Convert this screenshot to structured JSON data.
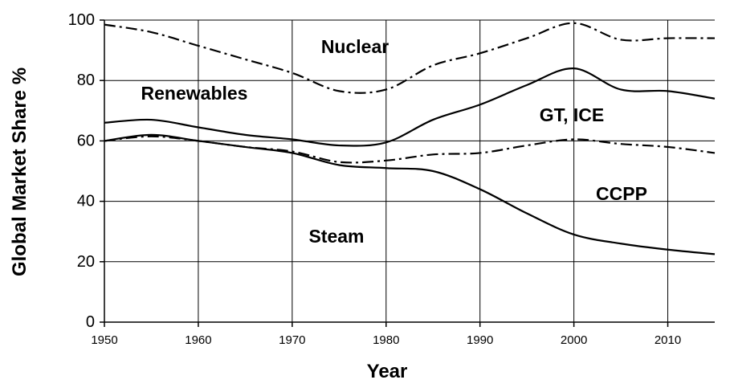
{
  "chart_data": {
    "type": "area",
    "xlabel": "Year",
    "ylabel": "Global Market Share %",
    "xlim": [
      1950,
      2015
    ],
    "ylim": [
      0,
      100
    ],
    "xticks": [
      1950,
      1960,
      1970,
      1980,
      1990,
      2000,
      2010
    ],
    "yticks": [
      0,
      20,
      40,
      60,
      80,
      100
    ],
    "grid": "horizontal and vertical",
    "boundaries": [
      {
        "style": "solid",
        "x": [
          1950,
          1955,
          1960,
          1965,
          1970,
          1975,
          1980,
          1985,
          1990,
          1995,
          2000,
          2005,
          2010,
          2015
        ],
        "y": [
          60,
          62,
          60,
          58,
          56,
          52,
          51,
          50,
          44,
          36,
          29,
          26,
          24,
          22.5
        ]
      },
      {
        "style": "dash-dot",
        "x": [
          1950,
          1955,
          1960,
          1965,
          1970,
          1975,
          1980,
          1985,
          1990,
          1995,
          2000,
          2005,
          2010,
          2015
        ],
        "y": [
          60,
          61.5,
          60,
          58,
          56.5,
          53,
          53.5,
          55.5,
          56,
          58.5,
          60.5,
          59,
          58,
          56
        ]
      },
      {
        "style": "solid",
        "x": [
          1950,
          1955,
          1960,
          1965,
          1970,
          1975,
          1980,
          1985,
          1990,
          1995,
          2000,
          2005,
          2010,
          2015
        ],
        "y": [
          66,
          67,
          64.5,
          62,
          60.5,
          58.5,
          59.5,
          67,
          72,
          78.5,
          84,
          77,
          76.5,
          74
        ]
      },
      {
        "style": "dash-dot",
        "x": [
          1950,
          1955,
          1960,
          1965,
          1970,
          1975,
          1980,
          1985,
          1990,
          1995,
          2000,
          2005,
          2010,
          2015
        ],
        "y": [
          98.5,
          96,
          91.5,
          87,
          82.5,
          76.5,
          77,
          85,
          89,
          94,
          99,
          93.5,
          94,
          94
        ]
      }
    ],
    "region_labels": [
      "Nuclear",
      "Renewables",
      "GT, ICE",
      "CCPP",
      "Steam"
    ]
  }
}
